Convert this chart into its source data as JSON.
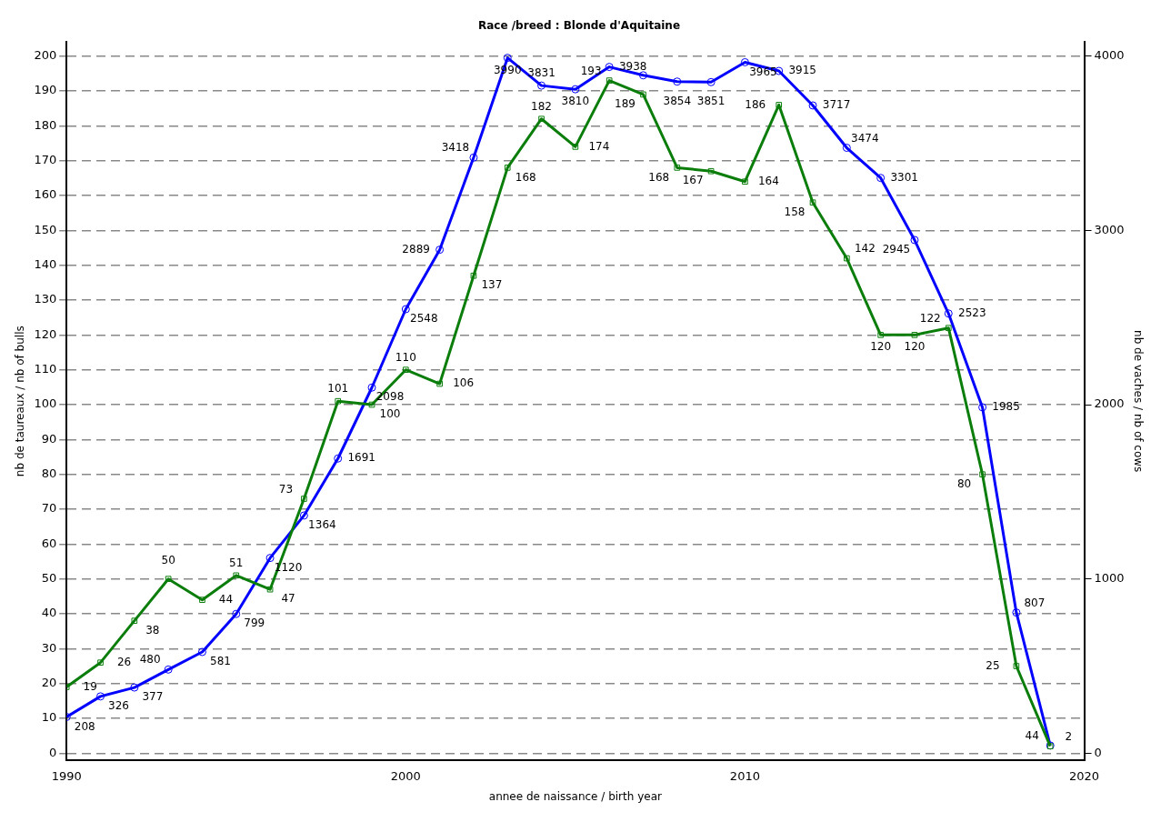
{
  "chart_data": {
    "type": "line",
    "title": "Race /breed : Blonde d'Aquitaine",
    "xlabel": "annee de naissance / birth year",
    "ylabel": "nb de taureaux / nb of bulls",
    "y2label": "nb de vaches / nb of cows",
    "x": [
      1990,
      1991,
      1992,
      1993,
      1994,
      1995,
      1996,
      1997,
      1998,
      1999,
      2000,
      2001,
      2002,
      2003,
      2004,
      2005,
      2006,
      2007,
      2008,
      2009,
      2010,
      2011,
      2012,
      2013,
      2014,
      2015,
      2016,
      2017,
      2018,
      2019
    ],
    "series": [
      {
        "color": "#0b7d0b",
        "marker": "square",
        "values": [
          19,
          26,
          38,
          50,
          44,
          51,
          47,
          73,
          101,
          100,
          110,
          106,
          137,
          168,
          182,
          174,
          193,
          189,
          168,
          167,
          164,
          186,
          158,
          142,
          120,
          120,
          122,
          80,
          25,
          2
        ],
        "value_labels": [
          "19",
          "26",
          "38",
          "50",
          "44",
          "51",
          "47",
          "73",
          "101",
          "100",
          "110",
          "106",
          "137",
          "168",
          "182",
          "174",
          "193",
          "189",
          "168",
          "167",
          "164",
          "186",
          "158",
          "142",
          "120",
          "120",
          "122",
          "80",
          "25",
          "2"
        ]
      },
      {
        "color": "#0000ff",
        "marker": "circle",
        "axis": "y2",
        "values": [
          208,
          326,
          377,
          480,
          581,
          799,
          1120,
          1364,
          1691,
          2098,
          2548,
          2889,
          3418,
          3990,
          3831,
          3810,
          3938,
          3890,
          3854,
          3851,
          3965,
          3915,
          3717,
          3474,
          3301,
          2945,
          2523,
          1985,
          807,
          44
        ],
        "value_labels": [
          "208",
          "326",
          "377",
          "480",
          "581",
          "799",
          "1120",
          "1364",
          "1691",
          "2098",
          "2548",
          "2889",
          "3418",
          "3990",
          "3831",
          "3810",
          "3938",
          null,
          "3854",
          "3851",
          "3965",
          "3915",
          "3717",
          "3474",
          "3301",
          "2945",
          "2523",
          "1985",
          "807",
          "44"
        ]
      }
    ],
    "xlim": [
      1990,
      2020
    ],
    "xticks": [
      1990,
      2000,
      2010,
      2020
    ],
    "ylim": [
      -2,
      204
    ],
    "yticks": [
      0,
      10,
      20,
      30,
      40,
      50,
      60,
      70,
      80,
      90,
      100,
      110,
      120,
      130,
      140,
      150,
      160,
      170,
      180,
      190,
      200
    ],
    "y2lim": [
      -40,
      4080
    ],
    "y2ticks": [
      0,
      1000,
      2000,
      3000,
      4000
    ],
    "grid": "y",
    "legend": false,
    "line_style": "solid"
  }
}
